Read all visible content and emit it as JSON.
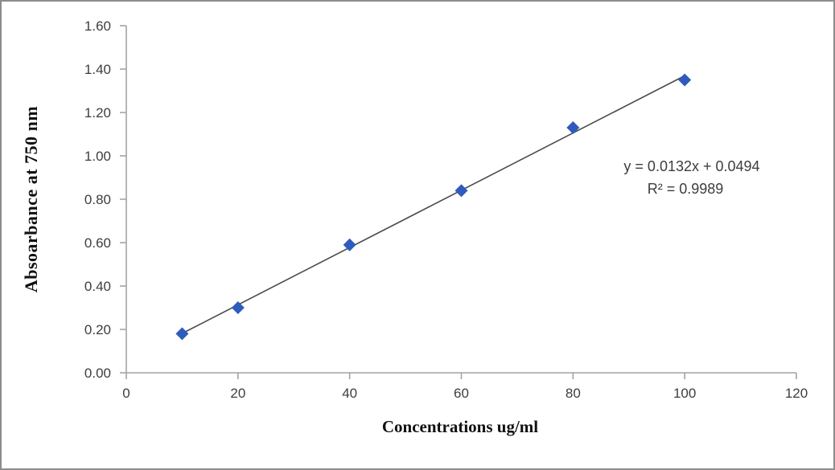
{
  "chart_data": {
    "type": "scatter",
    "title": "",
    "xlabel": "Concentrations ug/ml",
    "ylabel": "Absoarbance at 750 nm",
    "x": [
      10,
      20,
      40,
      60,
      80,
      100
    ],
    "y": [
      0.18,
      0.3,
      0.59,
      0.84,
      1.13,
      1.35
    ],
    "xlim": [
      0,
      120
    ],
    "ylim": [
      0,
      1.6
    ],
    "x_ticks": [
      "0",
      "20",
      "40",
      "60",
      "80",
      "100",
      "120"
    ],
    "y_ticks": [
      "0.00",
      "0.20",
      "0.40",
      "0.60",
      "0.80",
      "1.00",
      "1.20",
      "1.40",
      "1.60"
    ],
    "trendline": {
      "slope": 0.0132,
      "intercept": 0.0494,
      "x_start": 10,
      "x_end": 100,
      "color": "#4a4a4a"
    },
    "annotation": {
      "line1": "y = 0.0132x + 0.0494",
      "line2": "R² = 0.9989"
    },
    "marker": {
      "shape": "diamond",
      "color": "#2e5bbd",
      "size": 8
    },
    "axis_color": "#a3a3a3",
    "tick_label_color": "#3d3d3d",
    "grid": false,
    "legend": false,
    "frame_border_color": "#8c8c8c"
  }
}
